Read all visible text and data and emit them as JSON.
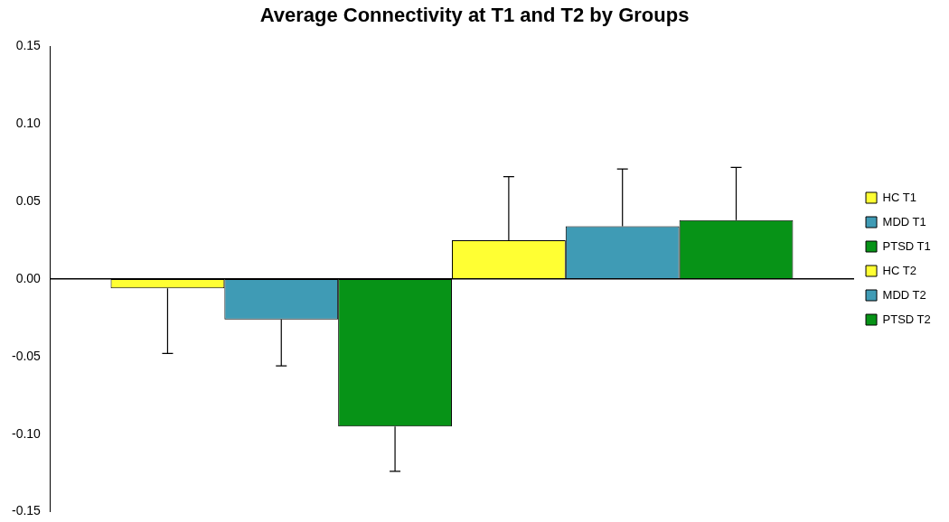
{
  "chart_data": {
    "type": "bar",
    "title": "Average Connectivity at T1 and T2 by Groups",
    "categories": [
      null
    ],
    "series": [
      {
        "name": "HC T1",
        "color": "#ffff33",
        "values": [
          -0.006
        ],
        "errors": [
          [
            -0.048,
            -0.006
          ]
        ]
      },
      {
        "name": "MDD T1",
        "color": "#3f9bb5",
        "values": [
          -0.026
        ],
        "errors": [
          [
            -0.056,
            -0.026
          ]
        ]
      },
      {
        "name": "PTSD T1",
        "color": "#079317",
        "values": [
          -0.095
        ],
        "errors": [
          [
            -0.124,
            -0.095
          ]
        ]
      },
      {
        "name": "HC T2",
        "color": "#ffff33",
        "values": [
          0.025
        ],
        "errors": [
          [
            0.025,
            0.066
          ]
        ]
      },
      {
        "name": "MDD T2",
        "color": "#3f9bb5",
        "values": [
          0.034
        ],
        "errors": [
          [
            0.034,
            0.071
          ]
        ]
      },
      {
        "name": "PTSD T2",
        "color": "#079317",
        "values": [
          0.038
        ],
        "errors": [
          [
            0.038,
            0.072
          ]
        ]
      }
    ],
    "ylim": [
      -0.15,
      0.15
    ],
    "yticks": [
      {
        "value": -0.15,
        "label": "-0.15"
      },
      {
        "value": -0.1,
        "label": "-0.10"
      },
      {
        "value": -0.05,
        "label": "-0.05"
      },
      {
        "value": 0,
        "label": "0.00"
      },
      {
        "value": 0.05,
        "label": "0.05"
      },
      {
        "value": 0.1,
        "label": "0.10"
      },
      {
        "value": 0.15,
        "label": "0.15"
      }
    ],
    "legend": "right"
  }
}
